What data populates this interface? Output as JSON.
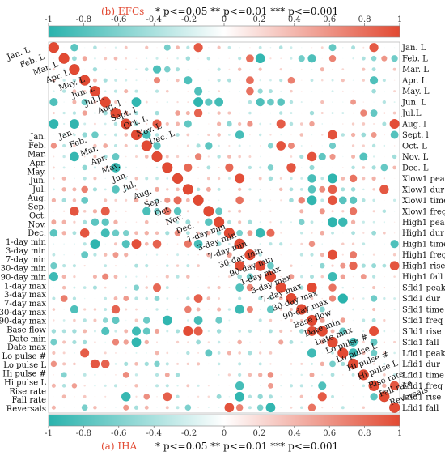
{
  "chart_data": {
    "type": "heatmap",
    "colormap": {
      "negative": "#2ab3ad",
      "neutral": "#ffffff",
      "positive": "#e24a33"
    },
    "value_range": [
      -1,
      1
    ],
    "colorbar_ticks": [
      "-1",
      "-0.8",
      "-0.6",
      "-0.4",
      "-0.2",
      "0",
      "0.2",
      "0.4",
      "0.6",
      "0.8",
      "1"
    ],
    "top_panel": {
      "label": "(b) EFCs",
      "significance": "* p<=0.05 ** p<=0.01 *** p<=0.001",
      "variables": [
        "Jan. L",
        "Feb. L",
        "Mar. L",
        "Apr. L",
        "May. L",
        "Jun. L",
        "Jul.L",
        "Aug. l",
        "Sept. l",
        "Oct. L",
        "Nov. L",
        "Dec. L",
        "Xlow1 peak",
        "Xlow1 dur",
        "Xlow1 time",
        "Xlow1 freq",
        "High1 peak",
        "High1 dur",
        "High1 time",
        "High1 freq",
        "High1 rise",
        "High1 fall",
        "Sfld1 peak",
        "Sfld1 dur",
        "Sfld1 time",
        "Sfld1 freq",
        "Sfld1 rise",
        "Sfld1 fall",
        "Lfld1 peak",
        "Lfld1 dur",
        "Lfld1 time",
        "Lfld1 freq",
        "Lfld1 rise",
        "Lfld1 fall"
      ]
    },
    "bottom_panel": {
      "label": "(a) IHA",
      "significance": "* p<=0.05 ** p<=0.01 *** p<=0.001",
      "variables": [
        "Jan.",
        "Feb.",
        "Mar.",
        "Apr.",
        "May.",
        "Jun.",
        "Jul.",
        "Aug.",
        "Sep.",
        "Oct.",
        "Nov.",
        "Dec.",
        "1-day min",
        "3-day min",
        "7-day min",
        "30-day min",
        "90-day min",
        "1-day max",
        "3-day max",
        "7-day max",
        "30-day max",
        "90-day max",
        "Base flow",
        "Date min",
        "Date max",
        "Lo pulse #",
        "Lo pulse L",
        "Hi pulse #",
        "Hi pulse L",
        "Rise rate",
        "Fall rate",
        "Reversals"
      ]
    }
  }
}
